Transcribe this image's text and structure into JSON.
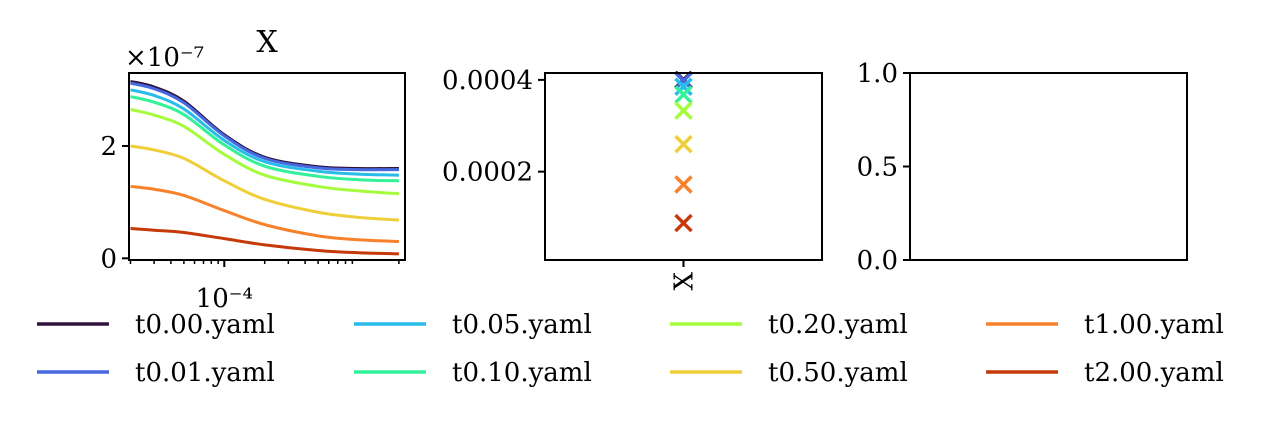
{
  "chart_data": [
    {
      "type": "line",
      "title": "X",
      "scale_label": "×10⁻⁷",
      "xscale": "log",
      "xlim": [
        1.95e-05,
        0.00222
      ],
      "ylim": [
        -0.03,
        3.3
      ],
      "xticks": [
        {
          "value": 0.0001,
          "label": "10⁻⁴"
        }
      ],
      "yticks": [
        {
          "value": 0,
          "label": "0"
        },
        {
          "value": 2,
          "label": "2"
        }
      ],
      "x": [
        2e-05,
        3e-05,
        5e-05,
        0.0001,
        0.0002,
        0.0005,
        0.001,
        0.002
      ],
      "series": [
        {
          "name": "t0.00.yaml",
          "color": "#30123b",
          "values": [
            3.15,
            3.05,
            2.8,
            2.2,
            1.8,
            1.63,
            1.6,
            1.6
          ]
        },
        {
          "name": "t0.01.yaml",
          "color": "#4669e0",
          "values": [
            3.12,
            3.02,
            2.77,
            2.18,
            1.78,
            1.61,
            1.58,
            1.58
          ]
        },
        {
          "name": "t0.05.yaml",
          "color": "#28bceb",
          "values": [
            3.0,
            2.9,
            2.66,
            2.1,
            1.72,
            1.55,
            1.5,
            1.48
          ]
        },
        {
          "name": "t0.10.yaml",
          "color": "#32f198",
          "values": [
            2.88,
            2.78,
            2.56,
            2.02,
            1.64,
            1.46,
            1.4,
            1.38
          ]
        },
        {
          "name": "t0.20.yaml",
          "color": "#a4fc3c",
          "values": [
            2.65,
            2.55,
            2.35,
            1.85,
            1.48,
            1.28,
            1.2,
            1.15
          ]
        },
        {
          "name": "t0.50.yaml",
          "color": "#eecf3a",
          "values": [
            2.0,
            1.93,
            1.78,
            1.38,
            1.05,
            0.82,
            0.73,
            0.68
          ]
        },
        {
          "name": "t1.00.yaml",
          "color": "#f8812b",
          "values": [
            1.28,
            1.23,
            1.12,
            0.85,
            0.6,
            0.4,
            0.33,
            0.3
          ]
        },
        {
          "name": "t2.00.yaml",
          "color": "#c63a0a",
          "values": [
            0.53,
            0.5,
            0.46,
            0.35,
            0.24,
            0.14,
            0.1,
            0.08
          ]
        }
      ]
    },
    {
      "type": "scatter",
      "categories": [
        "X"
      ],
      "ylim": [
        7.48e-06,
        0.000415
      ],
      "yticks": [
        {
          "value": 0.0002,
          "label": "0.0002"
        },
        {
          "value": 0.0004,
          "label": "0.0004"
        }
      ],
      "series": [
        {
          "name": "t0.00.yaml",
          "color": "#30123b",
          "values": [
            0.0004
          ]
        },
        {
          "name": "t0.01.yaml",
          "color": "#4669e0",
          "values": [
            0.000398
          ]
        },
        {
          "name": "t0.05.yaml",
          "color": "#28bceb",
          "values": [
            0.000385
          ]
        },
        {
          "name": "t0.10.yaml",
          "color": "#32f198",
          "values": [
            0.000368
          ]
        },
        {
          "name": "t0.20.yaml",
          "color": "#a4fc3c",
          "values": [
            0.000333
          ]
        },
        {
          "name": "t0.50.yaml",
          "color": "#eecf3a",
          "values": [
            0.00026
          ]
        },
        {
          "name": "t1.00.yaml",
          "color": "#f8812b",
          "values": [
            0.000172
          ]
        },
        {
          "name": "t2.00.yaml",
          "color": "#c63a0a",
          "values": [
            8.8e-05
          ]
        }
      ]
    },
    {
      "type": "line",
      "ylim": [
        0,
        1
      ],
      "yticks": [
        {
          "value": 0,
          "label": "0.0"
        },
        {
          "value": 0.5,
          "label": "0.5"
        },
        {
          "value": 1,
          "label": "1.0"
        }
      ],
      "series": []
    }
  ],
  "legend": {
    "placement": "bottom",
    "columns": 4,
    "entries": [
      {
        "label": "t0.00.yaml",
        "color": "#30123b"
      },
      {
        "label": "t0.01.yaml",
        "color": "#4669e0"
      },
      {
        "label": "t0.05.yaml",
        "color": "#28bceb"
      },
      {
        "label": "t0.10.yaml",
        "color": "#32f198"
      },
      {
        "label": "t0.20.yaml",
        "color": "#a4fc3c"
      },
      {
        "label": "t0.50.yaml",
        "color": "#eecf3a"
      },
      {
        "label": "t1.00.yaml",
        "color": "#f8812b"
      },
      {
        "label": "t2.00.yaml",
        "color": "#c63a0a"
      }
    ]
  }
}
